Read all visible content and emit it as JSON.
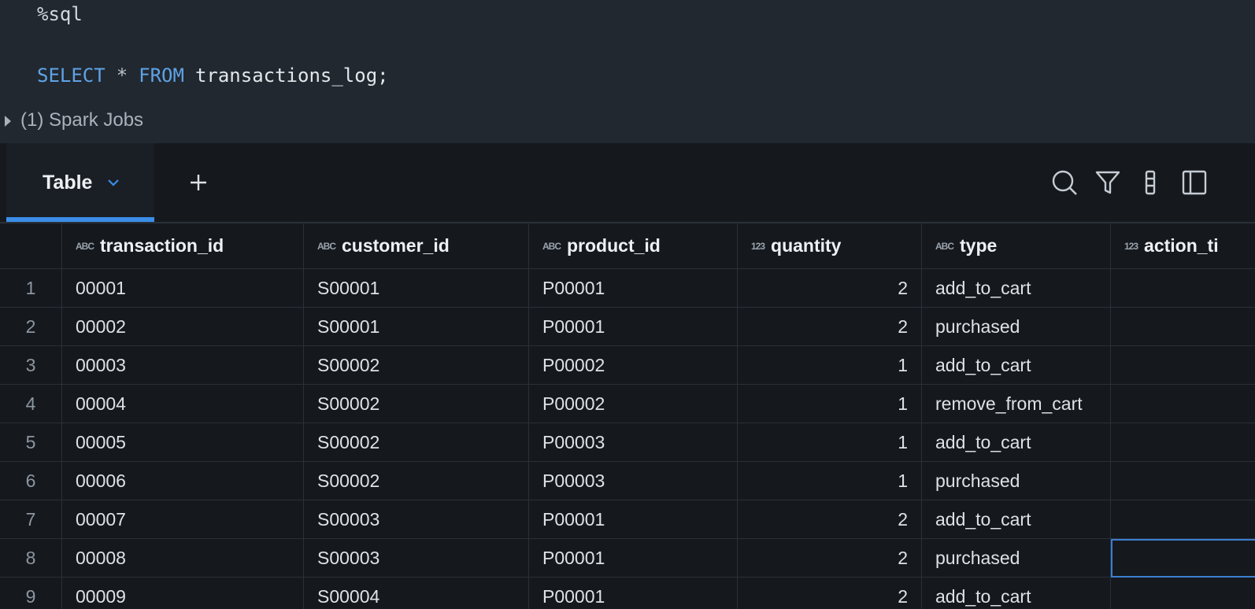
{
  "code": {
    "magic": "%sql",
    "query": [
      {
        "text": "SELECT",
        "color": "#5fa3e6"
      },
      {
        "text": "*",
        "color": "#b9c0c8"
      },
      {
        "text": "FROM",
        "color": "#5fa3e6"
      },
      {
        "text": "transactions_log;",
        "color": "#e3e7eb"
      }
    ]
  },
  "jobs": "(1) Spark Jobs",
  "tabs": {
    "active": "Table"
  },
  "table": {
    "columns": [
      {
        "name": "transaction_id",
        "icon": "ABC"
      },
      {
        "name": "customer_id",
        "icon": "ABC"
      },
      {
        "name": "product_id",
        "icon": "ABC"
      },
      {
        "name": "quantity",
        "icon": "123"
      },
      {
        "name": "type",
        "icon": "ABC"
      },
      {
        "name": "action_ti",
        "icon": "123"
      }
    ],
    "rows": [
      [
        "1",
        "00001",
        "S00001",
        "P00001",
        2,
        "add_to_cart"
      ],
      [
        "2",
        "00002",
        "S00001",
        "P00001",
        2,
        "purchased"
      ],
      [
        "3",
        "00003",
        "S00002",
        "P00002",
        1,
        "add_to_cart"
      ],
      [
        "4",
        "00004",
        "S00002",
        "P00002",
        1,
        "remove_from_cart"
      ],
      [
        "5",
        "00005",
        "S00002",
        "P00003",
        1,
        "add_to_cart"
      ],
      [
        "6",
        "00006",
        "S00002",
        "P00003",
        1,
        "purchased"
      ],
      [
        "7",
        "00007",
        "S00003",
        "P00001",
        2,
        "add_to_cart"
      ],
      [
        "8",
        "00008",
        "S00003",
        "P00001",
        2,
        "purchased"
      ],
      [
        "9",
        "00009",
        "S00004",
        "P00001",
        2,
        "add_to_cart"
      ]
    ]
  }
}
